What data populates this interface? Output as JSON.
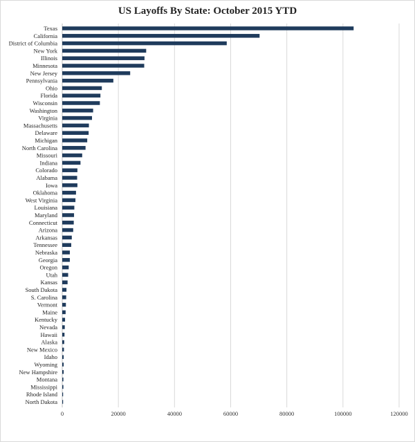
{
  "chart_data": {
    "type": "bar",
    "orientation": "horizontal",
    "title": "US Layoffs By State: October 2015 YTD",
    "xlabel": "",
    "ylabel": "",
    "xlim": [
      0,
      120000
    ],
    "x_ticks": [
      "0",
      "20000",
      "40000",
      "60000",
      "80000",
      "100000",
      "120000"
    ],
    "grid": true,
    "legend": "none",
    "bar_color": "#1f3b5c",
    "categories": [
      "Texas",
      "California",
      "District of Columbia",
      "New York",
      "Illinois",
      "Minnesota",
      "New Jersey",
      "Pennsylvania",
      "Ohio",
      "Florida",
      "Wisconsin",
      "Washington",
      "Virginia",
      "Massachusetts",
      "Delaware",
      "Michigan",
      "North Carolina",
      "Missouri",
      "Indiana",
      "Colorado",
      "Alabama",
      "Iowa",
      "Oklahoma",
      "West Virginia",
      "Louisiana",
      "Maryland",
      "Connecticut",
      "Arizona",
      "Arkansas",
      "Tennessee",
      "Nebraska",
      "Georgia",
      "Oregon",
      "Utah",
      "Kansas",
      "South Dakota",
      "S. Carolina",
      "Vermont",
      "Maine",
      "Kentucky",
      "Nevada",
      "Hawaii",
      "Alaska",
      "New Mexico",
      "Idaho",
      "Wyoming",
      "New Hampshire",
      "Montana",
      "Mississippi",
      "Rhode Island",
      "North Dakota"
    ],
    "values": [
      103800,
      70300,
      58600,
      29900,
      29300,
      29200,
      24200,
      18200,
      14100,
      13600,
      13400,
      11000,
      10600,
      9500,
      9400,
      8900,
      8300,
      7100,
      6500,
      5400,
      5300,
      5400,
      4900,
      4700,
      4300,
      4200,
      4100,
      3900,
      3400,
      3200,
      2700,
      2700,
      2300,
      2100,
      1900,
      1500,
      1400,
      1300,
      1200,
      1000,
      900,
      800,
      700,
      600,
      500,
      500,
      500,
      400,
      400,
      300,
      300
    ]
  }
}
